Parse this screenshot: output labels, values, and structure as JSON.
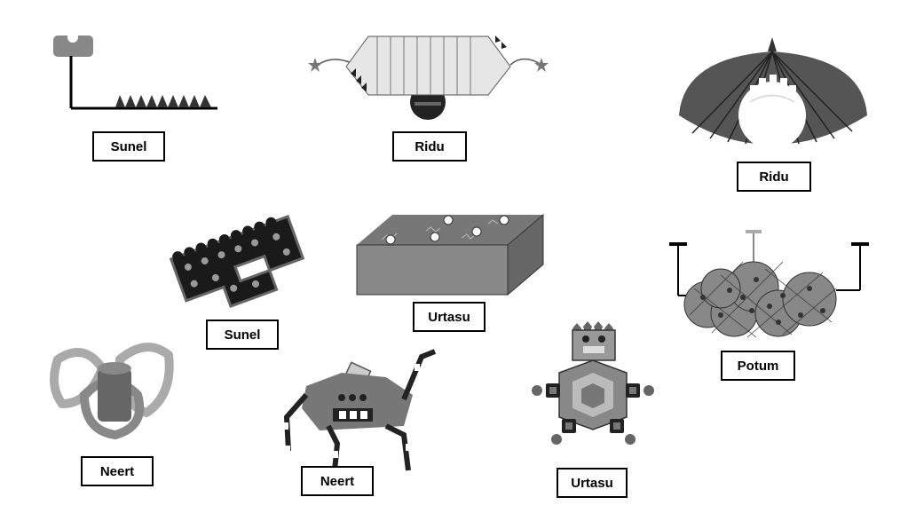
{
  "items": [
    {
      "label": "Sunel"
    },
    {
      "label": "Ridu"
    },
    {
      "label": "Ridu"
    },
    {
      "label": "Sunel"
    },
    {
      "label": "Urtasu"
    },
    {
      "label": "Potum"
    },
    {
      "label": "Neert"
    },
    {
      "label": "Neert"
    },
    {
      "label": "Urtasu"
    }
  ]
}
